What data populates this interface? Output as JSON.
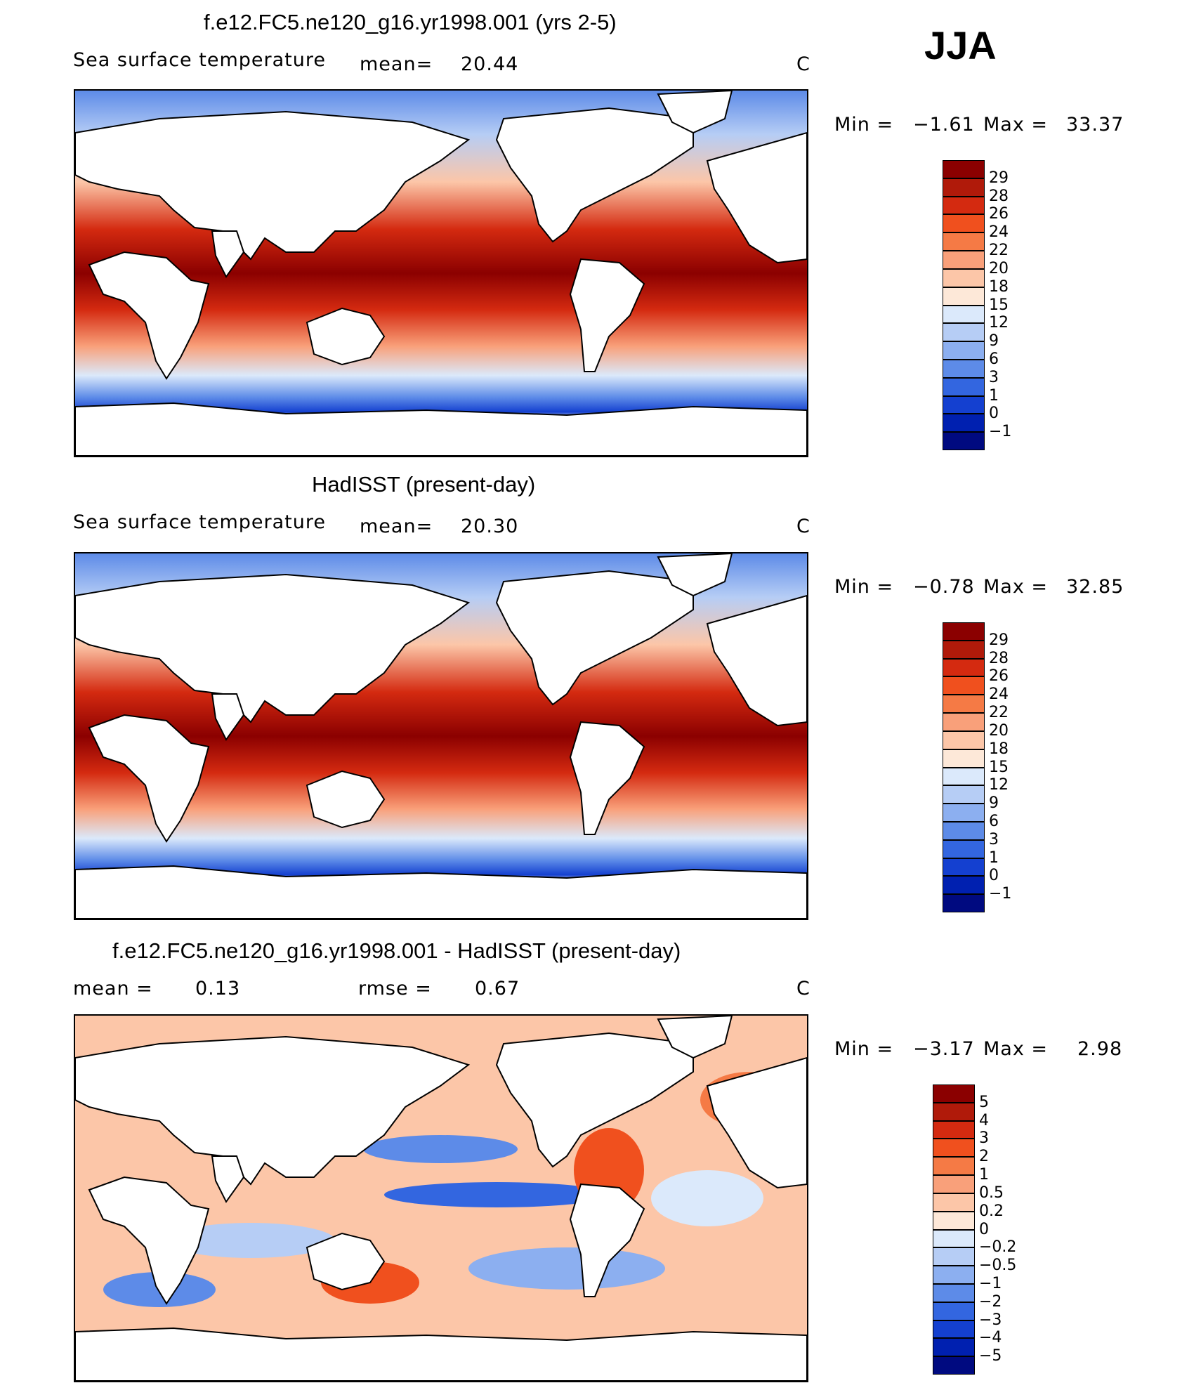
{
  "season": "JJA",
  "panels": [
    {
      "title": "f.e12.FC5.ne120_g16.yr1998.001 (yrs 2-5)",
      "variable": "Sea surface temperature",
      "stat1_label": "mean=",
      "stat1_value": "20.44",
      "stat2_label": "",
      "stat2_value": "",
      "units": "C",
      "min_label": "Min =",
      "min_value": "−1.61",
      "max_label": "Max =",
      "max_value": "33.37",
      "ticks": [
        "29",
        "28",
        "26",
        "24",
        "22",
        "20",
        "18",
        "15",
        "12",
        "9",
        "6",
        "3",
        "1",
        "0",
        "−1"
      ],
      "colors": [
        "#8b0000",
        "#b01a0a",
        "#d42a10",
        "#f0501e",
        "#f57a45",
        "#f9a07a",
        "#fcc6a8",
        "#fde8d8",
        "#dbe9fb",
        "#b6cdf5",
        "#8caff0",
        "#5d8be8",
        "#3366e0",
        "#1440d0",
        "#0020b0",
        "#000a80"
      ],
      "type": "abs"
    },
    {
      "title": "HadISST (present-day)",
      "variable": "Sea surface temperature",
      "stat1_label": "mean=",
      "stat1_value": "20.30",
      "stat2_label": "",
      "stat2_value": "",
      "units": "C",
      "min_label": "Min =",
      "min_value": "−0.78",
      "max_label": "Max =",
      "max_value": "32.85",
      "ticks": [
        "29",
        "28",
        "26",
        "24",
        "22",
        "20",
        "18",
        "15",
        "12",
        "9",
        "6",
        "3",
        "1",
        "0",
        "−1"
      ],
      "colors": [
        "#8b0000",
        "#b01a0a",
        "#d42a10",
        "#f0501e",
        "#f57a45",
        "#f9a07a",
        "#fcc6a8",
        "#fde8d8",
        "#dbe9fb",
        "#b6cdf5",
        "#8caff0",
        "#5d8be8",
        "#3366e0",
        "#1440d0",
        "#0020b0",
        "#000a80"
      ],
      "type": "abs"
    },
    {
      "title": "f.e12.FC5.ne120_g16.yr1998.001 - HadISST (present-day)",
      "variable": "",
      "stat1_label": "mean =",
      "stat1_value": "0.13",
      "stat2_label": "rmse =",
      "stat2_value": "0.67",
      "units": "C",
      "min_label": "Min =",
      "min_value": "−3.17",
      "max_label": "Max =",
      "max_value": "2.98",
      "ticks": [
        "5",
        "4",
        "3",
        "2",
        "1",
        "0.5",
        "0.2",
        "0",
        "−0.2",
        "−0.5",
        "−1",
        "−2",
        "−3",
        "−4",
        "−5"
      ],
      "colors": [
        "#8b0000",
        "#b01a0a",
        "#d42a10",
        "#f0501e",
        "#f57a45",
        "#f9a07a",
        "#fcc6a8",
        "#fde8d8",
        "#dbe9fb",
        "#b6cdf5",
        "#8caff0",
        "#5d8be8",
        "#3366e0",
        "#1440d0",
        "#0020b0",
        "#000a80"
      ],
      "type": "diff"
    }
  ]
}
